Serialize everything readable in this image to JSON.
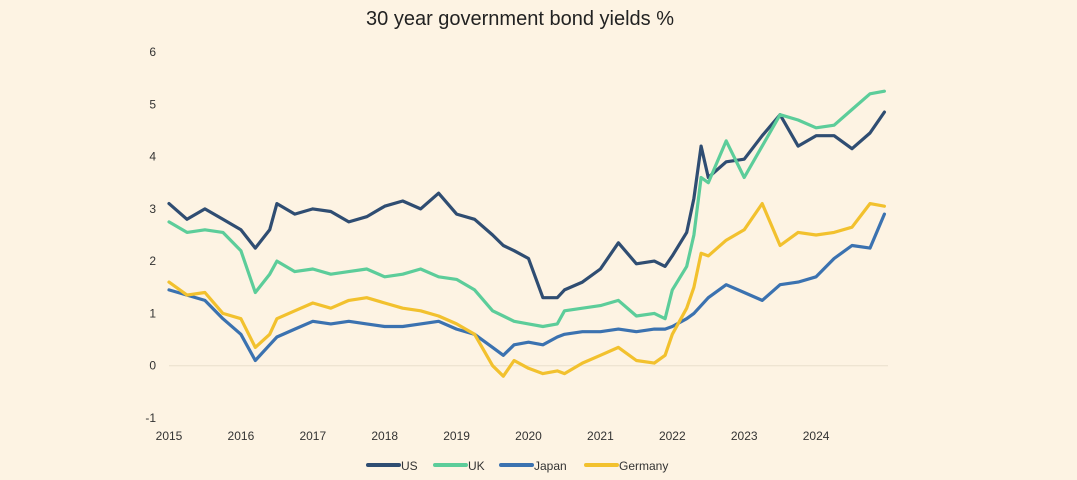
{
  "chart_data": {
    "type": "line",
    "title": "30 year government bond yields %",
    "xlabel": "",
    "ylabel": "",
    "xlim": [
      2015,
      2025
    ],
    "ylim": [
      -1,
      6
    ],
    "y_ticks": [
      "6",
      "5",
      "4",
      "3",
      "2",
      "1",
      "0",
      "-1"
    ],
    "x_ticks": [
      "2015",
      "2016",
      "2017",
      "2018",
      "2019",
      "2020",
      "2021",
      "2022",
      "2023",
      "2024"
    ],
    "grid": false,
    "legend_position": "bottom",
    "series": [
      {
        "name": "US",
        "color": "#2f4d72",
        "x": [
          2015.0,
          2015.25,
          2015.5,
          2015.75,
          2016.0,
          2016.2,
          2016.4,
          2016.5,
          2016.75,
          2017.0,
          2017.25,
          2017.5,
          2017.75,
          2018.0,
          2018.25,
          2018.5,
          2018.75,
          2019.0,
          2019.25,
          2019.5,
          2019.65,
          2019.8,
          2020.0,
          2020.2,
          2020.4,
          2020.5,
          2020.75,
          2021.0,
          2021.25,
          2021.5,
          2021.75,
          2021.9,
          2022.0,
          2022.2,
          2022.3,
          2022.4,
          2022.5,
          2022.75,
          2023.0,
          2023.25,
          2023.5,
          2023.75,
          2024.0,
          2024.25,
          2024.5,
          2024.75,
          2024.95
        ],
        "values": [
          3.1,
          2.8,
          3.0,
          2.8,
          2.6,
          2.25,
          2.6,
          3.1,
          2.9,
          3.0,
          2.95,
          2.75,
          2.85,
          3.05,
          3.15,
          3.0,
          3.3,
          2.9,
          2.8,
          2.5,
          2.3,
          2.2,
          2.05,
          1.3,
          1.3,
          1.45,
          1.6,
          1.85,
          2.35,
          1.95,
          2.0,
          1.9,
          2.1,
          2.55,
          3.2,
          4.2,
          3.6,
          3.9,
          3.95,
          4.4,
          4.8,
          4.2,
          4.4,
          4.4,
          4.15,
          4.45,
          4.85
        ]
      },
      {
        "name": "UK",
        "color": "#5ccd9a",
        "x": [
          2015.0,
          2015.25,
          2015.5,
          2015.75,
          2016.0,
          2016.2,
          2016.4,
          2016.5,
          2016.75,
          2017.0,
          2017.25,
          2017.5,
          2017.75,
          2018.0,
          2018.25,
          2018.5,
          2018.75,
          2019.0,
          2019.25,
          2019.5,
          2019.65,
          2019.8,
          2020.0,
          2020.2,
          2020.4,
          2020.5,
          2020.75,
          2021.0,
          2021.25,
          2021.5,
          2021.75,
          2021.9,
          2022.0,
          2022.2,
          2022.3,
          2022.4,
          2022.5,
          2022.75,
          2023.0,
          2023.25,
          2023.5,
          2023.75,
          2024.0,
          2024.25,
          2024.5,
          2024.75,
          2024.95
        ],
        "values": [
          2.75,
          2.55,
          2.6,
          2.55,
          2.2,
          1.4,
          1.75,
          2.0,
          1.8,
          1.85,
          1.75,
          1.8,
          1.85,
          1.7,
          1.75,
          1.85,
          1.7,
          1.65,
          1.45,
          1.05,
          0.95,
          0.85,
          0.8,
          0.75,
          0.8,
          1.05,
          1.1,
          1.15,
          1.25,
          0.95,
          1.0,
          0.9,
          1.45,
          1.9,
          2.5,
          3.6,
          3.5,
          4.3,
          3.6,
          4.2,
          4.8,
          4.7,
          4.55,
          4.6,
          4.9,
          5.2,
          5.25
        ]
      },
      {
        "name": "Japan",
        "color": "#3b72b0",
        "x": [
          2015.0,
          2015.25,
          2015.5,
          2015.75,
          2016.0,
          2016.2,
          2016.4,
          2016.5,
          2016.75,
          2017.0,
          2017.25,
          2017.5,
          2017.75,
          2018.0,
          2018.25,
          2018.5,
          2018.75,
          2019.0,
          2019.25,
          2019.5,
          2019.65,
          2019.8,
          2020.0,
          2020.2,
          2020.4,
          2020.5,
          2020.75,
          2021.0,
          2021.25,
          2021.5,
          2021.75,
          2021.9,
          2022.0,
          2022.2,
          2022.3,
          2022.4,
          2022.5,
          2022.75,
          2023.0,
          2023.25,
          2023.5,
          2023.75,
          2024.0,
          2024.25,
          2024.5,
          2024.75,
          2024.95
        ],
        "values": [
          1.45,
          1.35,
          1.25,
          0.9,
          0.6,
          0.1,
          0.4,
          0.55,
          0.7,
          0.85,
          0.8,
          0.85,
          0.8,
          0.75,
          0.75,
          0.8,
          0.85,
          0.7,
          0.6,
          0.35,
          0.2,
          0.4,
          0.45,
          0.4,
          0.55,
          0.6,
          0.65,
          0.65,
          0.7,
          0.65,
          0.7,
          0.7,
          0.75,
          0.9,
          1.0,
          1.15,
          1.3,
          1.55,
          1.4,
          1.25,
          1.55,
          1.6,
          1.7,
          2.05,
          2.3,
          2.25,
          2.9
        ]
      },
      {
        "name": "Germany",
        "color": "#f2c12e",
        "x": [
          2015.0,
          2015.25,
          2015.5,
          2015.75,
          2016.0,
          2016.2,
          2016.4,
          2016.5,
          2016.75,
          2017.0,
          2017.25,
          2017.5,
          2017.75,
          2018.0,
          2018.25,
          2018.5,
          2018.75,
          2019.0,
          2019.25,
          2019.5,
          2019.65,
          2019.8,
          2020.0,
          2020.2,
          2020.4,
          2020.5,
          2020.75,
          2021.0,
          2021.25,
          2021.5,
          2021.75,
          2021.9,
          2022.0,
          2022.2,
          2022.3,
          2022.4,
          2022.5,
          2022.75,
          2023.0,
          2023.25,
          2023.5,
          2023.75,
          2024.0,
          2024.25,
          2024.5,
          2024.75,
          2024.95
        ],
        "values": [
          1.6,
          1.35,
          1.4,
          1.0,
          0.9,
          0.35,
          0.6,
          0.9,
          1.05,
          1.2,
          1.1,
          1.25,
          1.3,
          1.2,
          1.1,
          1.05,
          0.95,
          0.8,
          0.6,
          0.0,
          -0.2,
          0.1,
          -0.05,
          -0.15,
          -0.1,
          -0.15,
          0.05,
          0.2,
          0.35,
          0.1,
          0.05,
          0.2,
          0.6,
          1.1,
          1.5,
          2.15,
          2.1,
          2.4,
          2.6,
          3.1,
          2.3,
          2.55,
          2.5,
          2.55,
          2.65,
          3.1,
          3.05
        ]
      }
    ]
  }
}
